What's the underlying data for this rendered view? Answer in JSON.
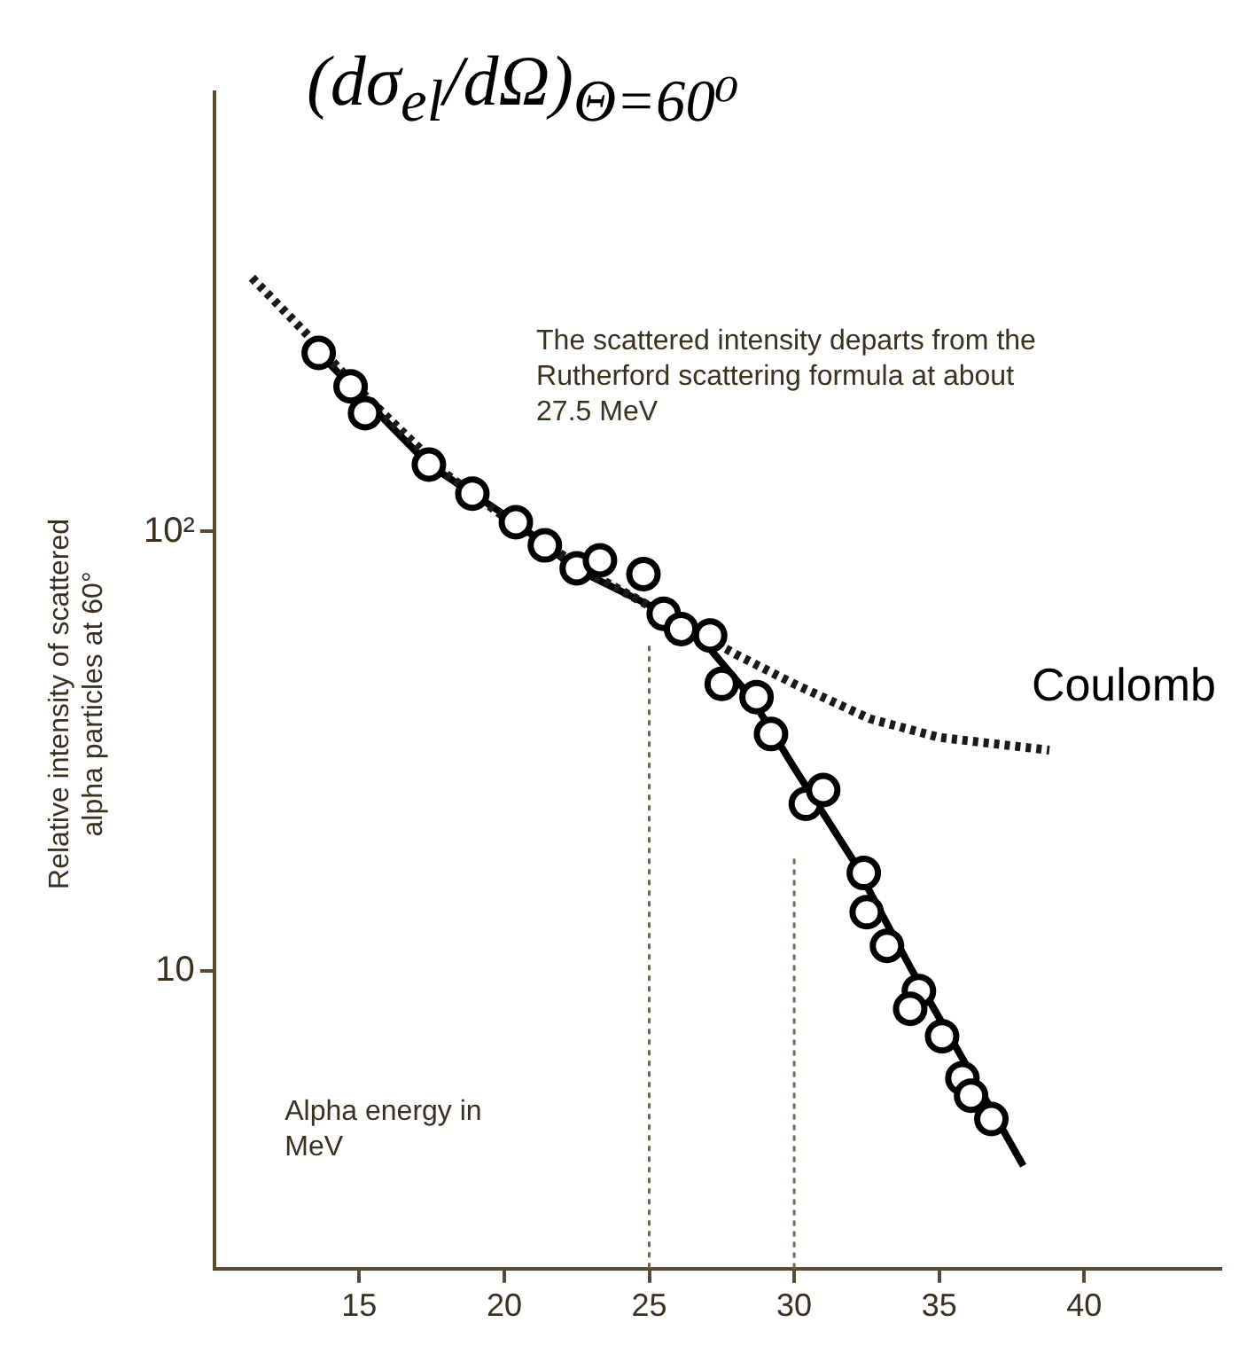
{
  "chart_data": {
    "type": "scatter",
    "title": "(dσ$_{el}$/dΩ)$_{Θ=60⁰}$",
    "xlabel": "Alpha energy in MeV",
    "ylabel": "Relative intensity of scattered alpha particles at 60°",
    "annotations": [
      "The scattered intensity departs from the Rutherford scattering formula at about 27.5 MeV"
    ],
    "log": "y",
    "grid": false,
    "legend": false,
    "xlim": [
      10,
      44.7
    ],
    "xticks": [
      15,
      20,
      25,
      30,
      35,
      40
    ],
    "ylim": [
      2.1,
      1000
    ],
    "yticks": [
      {
        "value": 10,
        "label": "10"
      },
      {
        "value": 100,
        "label": "10²"
      }
    ],
    "series": [
      {
        "name": "Coulomb",
        "type": "line",
        "color": "#1a1a1a",
        "line_style": "dotted",
        "marker": "none",
        "x": [
          11.3,
          13,
          15,
          18,
          20,
          23,
          25.5,
          28,
          30,
          32.6,
          35,
          38.8
        ],
        "values": [
          378,
          290,
          210,
          135,
          108,
          80,
          65,
          52.5,
          45,
          37.5,
          34,
          31.8
        ]
      },
      {
        "type": "line",
        "color": "#000000",
        "line_style": "solid",
        "marker": "none",
        "x": [
          13.6,
          17.4,
          20.4,
          22.5,
          25,
          27,
          28.5,
          30,
          32,
          34,
          36,
          37.9
        ],
        "values": [
          255,
          142,
          105,
          82,
          68,
          55,
          42,
          29,
          18,
          10.2,
          6,
          3.6
        ]
      },
      {
        "type": "line",
        "color": "#7a6648",
        "line_style": "dotted",
        "marker": "none",
        "x": [
          25,
          25
        ],
        "values": [
          55,
          2.1
        ]
      },
      {
        "type": "line",
        "color": "#7a6648",
        "line_style": "dotted",
        "marker": "none",
        "x": [
          30,
          30
        ],
        "values": [
          18,
          2.1
        ]
      },
      {
        "type": "scatter",
        "color": "#000000",
        "marker": "circle",
        "x": [
          13.6,
          14.7,
          15.2,
          17.4,
          18.9,
          20.4,
          21.4,
          22.5,
          23.3,
          24.8,
          25.5,
          26.1,
          27.1,
          27.5,
          28.7,
          29.2,
          30.4,
          31.0,
          32.4,
          32.5,
          33.2,
          34.3,
          34.0,
          35.1,
          35.8,
          36.1,
          36.8
        ],
        "values": [
          255,
          214,
          186,
          142,
          122,
          105,
          93,
          82.5,
          86,
          80,
          65,
          60,
          58,
          45,
          42,
          34.6,
          24,
          25.8,
          16.7,
          13.6,
          11.4,
          9.0,
          8.2,
          7.1,
          5.7,
          5.2,
          4.6
        ]
      }
    ]
  }
}
